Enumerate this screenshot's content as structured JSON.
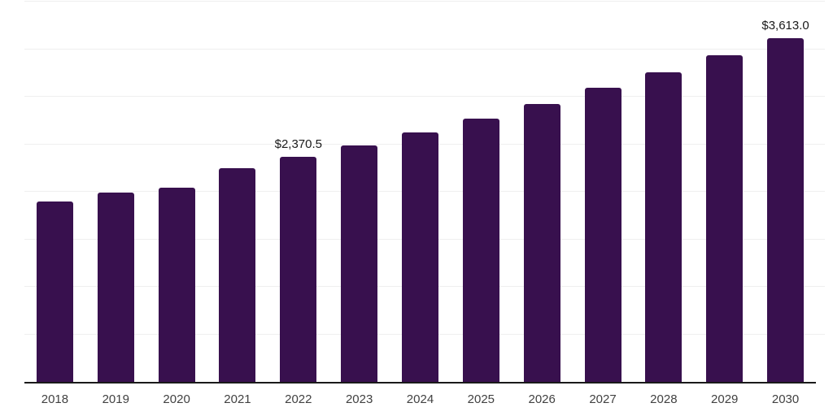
{
  "chart_data": {
    "type": "bar",
    "title": "",
    "xlabel": "",
    "ylabel": "",
    "categories": [
      "2018",
      "2019",
      "2020",
      "2021",
      "2022",
      "2023",
      "2024",
      "2025",
      "2026",
      "2027",
      "2028",
      "2029",
      "2030"
    ],
    "values": [
      1900,
      1990,
      2040,
      2250,
      2370.5,
      2490,
      2620,
      2770,
      2920,
      3090,
      3260,
      3440,
      3613.0
    ],
    "value_labels": {
      "2022": "$2,370.5",
      "2030": "$3,613.0"
    },
    "ylim": [
      0,
      4000
    ],
    "gridline_step": 500,
    "grid": true,
    "legend": "none",
    "colors": {
      "bar": "#38104E",
      "axis_line": "#1a1a1a",
      "gridline": "#efefef",
      "tick_label": "#414141",
      "value_label": "#1a1a1a",
      "background": "#ffffff"
    }
  }
}
